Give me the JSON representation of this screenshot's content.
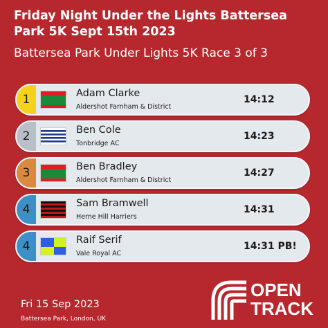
{
  "title": "Friday Night Under the Lights Battersea Park 5K Sept 15th 2023",
  "subtitle": "Battersea Park Under Lights 5K Race 3 of 3",
  "results": [
    {
      "position": "1",
      "name": "Adam Clarke",
      "club": "Aldershot Farnham & District",
      "time": "14:12",
      "badge_color": "#f6d21a",
      "flag": "afd"
    },
    {
      "position": "2",
      "name": "Ben Cole",
      "club": "Tonbridge AC",
      "time": "14:23",
      "badge_color": "#b9bfc6",
      "flag": "tonbridge"
    },
    {
      "position": "3",
      "name": "Ben Bradley",
      "club": "Aldershot Farnham & District",
      "time": "14:27",
      "badge_color": "#d98a3f",
      "flag": "afd"
    },
    {
      "position": "4",
      "name": "Sam Bramwell",
      "club": "Herne Hill Harriers",
      "time": "14:31",
      "badge_color": "#3d8fc6",
      "flag": "herne-hill"
    },
    {
      "position": "4",
      "name": "Raif Serif",
      "club": "Vale Royal AC",
      "time": "14:31 PB!",
      "badge_color": "#3d8fc6",
      "flag": "vale-royal"
    }
  ],
  "footer": {
    "date": "Fri 15 Sep 2023",
    "location": "Battersea Park, London, UK"
  },
  "logo": {
    "line1": "OPEN",
    "line2": "TRACK"
  },
  "colors": {
    "background": "#b7282e",
    "row_background": "#e4e9ee"
  }
}
